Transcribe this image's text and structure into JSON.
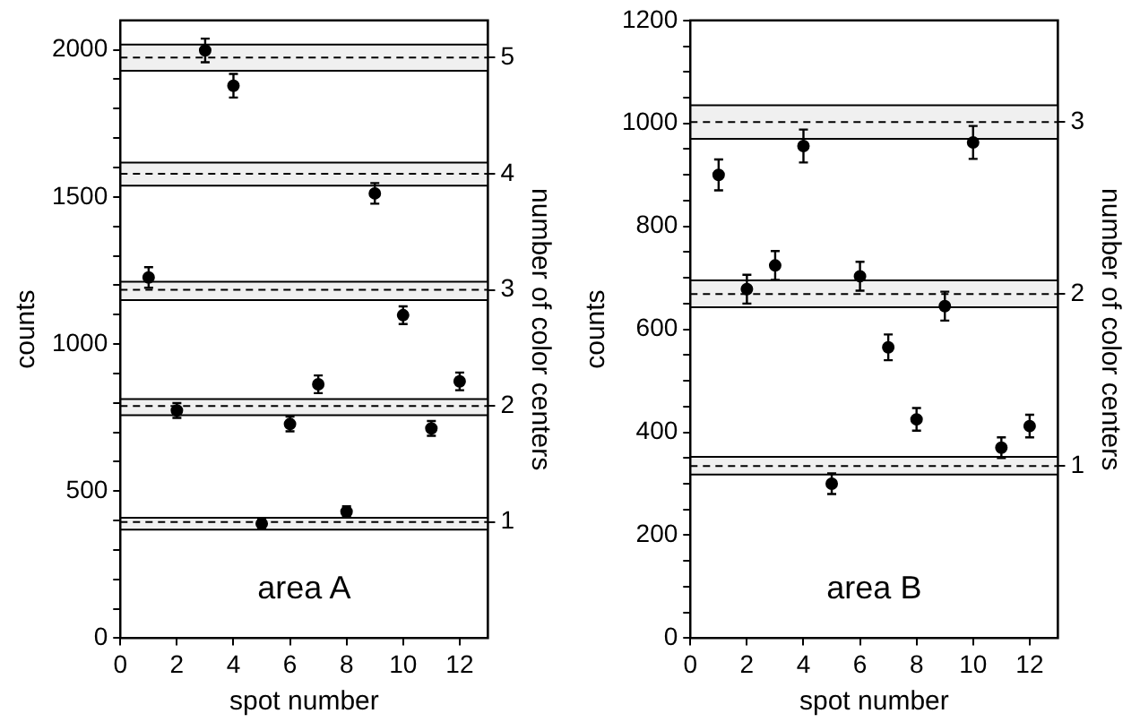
{
  "chart_data": [
    {
      "type": "scatter",
      "xlabel": "spot number",
      "ylabel": "counts",
      "y2label": "number of color centers",
      "annotations": [
        "area A"
      ],
      "marker": "circle",
      "grid": false,
      "legend": false,
      "xlim": [
        0,
        13
      ],
      "xticks": [
        0,
        2,
        4,
        6,
        8,
        10,
        12
      ],
      "ylim": [
        0,
        2100
      ],
      "yticks": [
        0,
        {
          "value": 100,
          "label": null
        },
        {
          "value": 200,
          "label": null
        },
        {
          "value": 300,
          "label": null
        },
        {
          "value": 400,
          "label": null
        },
        500,
        {
          "value": 600,
          "label": null
        },
        {
          "value": 700,
          "label": null
        },
        {
          "value": 800,
          "label": null
        },
        {
          "value": 900,
          "label": null
        },
        1000,
        {
          "value": 1100,
          "label": null
        },
        {
          "value": 1200,
          "label": null
        },
        {
          "value": 1300,
          "label": null
        },
        {
          "value": 1400,
          "label": null
        },
        1500,
        {
          "value": 1600,
          "label": null
        },
        {
          "value": 1700,
          "label": null
        },
        {
          "value": 1800,
          "label": null
        },
        {
          "value": 1900,
          "label": null
        },
        2000
      ],
      "y2lim": [
        0,
        5.32
      ],
      "y2ticks": [
        1,
        2,
        3,
        4,
        5
      ],
      "series": [
        {
          "color": "#000000",
          "x": [
            1,
            2,
            3,
            4,
            5,
            6,
            7,
            8,
            9,
            10,
            11,
            12
          ],
          "values": [
            1226,
            774,
            1998,
            1878,
            389,
            728,
            863,
            430,
            1512,
            1098,
            713,
            873
          ],
          "errors": [
            35,
            25,
            40,
            40,
            15,
            25,
            30,
            18,
            35,
            30,
            25,
            30
          ]
        }
      ],
      "bands": [
        {
          "axis": "y",
          "from": 369,
          "to": 409,
          "color": "#f0f0f0"
        },
        {
          "axis": "y",
          "from": 758,
          "to": 813,
          "color": "#f0f0f0"
        },
        {
          "axis": "y",
          "from": 1149,
          "to": 1212,
          "color": "#f0f0f0"
        },
        {
          "axis": "y",
          "from": 1538,
          "to": 1617,
          "color": "#f0f0f0"
        },
        {
          "axis": "y",
          "from": 1929,
          "to": 2018,
          "color": "#f0f0f0"
        }
      ],
      "ref_lines": [
        {
          "axis": "y2",
          "value": 1,
          "line_style": "dashed",
          "color": "#000000"
        },
        {
          "axis": "y2",
          "value": 2,
          "line_style": "dashed",
          "color": "#000000"
        },
        {
          "axis": "y2",
          "value": 3,
          "line_style": "dashed",
          "color": "#000000"
        },
        {
          "axis": "y2",
          "value": 4,
          "line_style": "dashed",
          "color": "#000000"
        },
        {
          "axis": "y2",
          "value": 5,
          "line_style": "dashed",
          "color": "#000000"
        }
      ]
    },
    {
      "type": "scatter",
      "xlabel": "spot number",
      "ylabel": "counts",
      "y2label": "number of color centers",
      "annotations": [
        "area B"
      ],
      "marker": "circle",
      "grid": false,
      "legend": false,
      "xlim": [
        0,
        13
      ],
      "xticks": [
        0,
        2,
        4,
        6,
        8,
        10,
        12
      ],
      "ylim": [
        0,
        1200
      ],
      "yticks": [
        0,
        {
          "value": 50,
          "label": null
        },
        {
          "value": 100,
          "label": null
        },
        {
          "value": 150,
          "label": null
        },
        200,
        {
          "value": 250,
          "label": null
        },
        {
          "value": 300,
          "label": null
        },
        {
          "value": 350,
          "label": null
        },
        400,
        {
          "value": 450,
          "label": null
        },
        {
          "value": 500,
          "label": null
        },
        {
          "value": 550,
          "label": null
        },
        600,
        {
          "value": 650,
          "label": null
        },
        {
          "value": 700,
          "label": null
        },
        {
          "value": 750,
          "label": null
        },
        800,
        {
          "value": 850,
          "label": null
        },
        {
          "value": 900,
          "label": null
        },
        {
          "value": 950,
          "label": null
        },
        1000,
        {
          "value": 1050,
          "label": null
        },
        {
          "value": 1100,
          "label": null
        },
        {
          "value": 1150,
          "label": null
        },
        1200
      ],
      "y2lim": [
        0,
        3.59
      ],
      "y2ticks": [
        1,
        2,
        3
      ],
      "series": [
        {
          "color": "#000000",
          "x": [
            1,
            2,
            3,
            4,
            5,
            6,
            7,
            8,
            9,
            10,
            11,
            12
          ],
          "values": [
            900,
            678,
            724,
            956,
            300,
            703,
            565,
            425,
            645,
            963,
            370,
            412
          ],
          "errors": [
            30,
            28,
            28,
            32,
            20,
            28,
            25,
            22,
            28,
            32,
            20,
            22
          ]
        }
      ],
      "bands": [
        {
          "axis": "y",
          "from": 318,
          "to": 352,
          "color": "#f0f0f0"
        },
        {
          "axis": "y",
          "from": 643,
          "to": 695,
          "color": "#f0f0f0"
        },
        {
          "axis": "y",
          "from": 970,
          "to": 1035,
          "color": "#f0f0f0"
        }
      ],
      "ref_lines": [
        {
          "axis": "y2",
          "value": 1,
          "line_style": "dashed",
          "color": "#000000"
        },
        {
          "axis": "y2",
          "value": 2,
          "line_style": "dashed",
          "color": "#000000"
        },
        {
          "axis": "y2",
          "value": 3,
          "line_style": "dashed",
          "color": "#000000"
        }
      ]
    }
  ]
}
